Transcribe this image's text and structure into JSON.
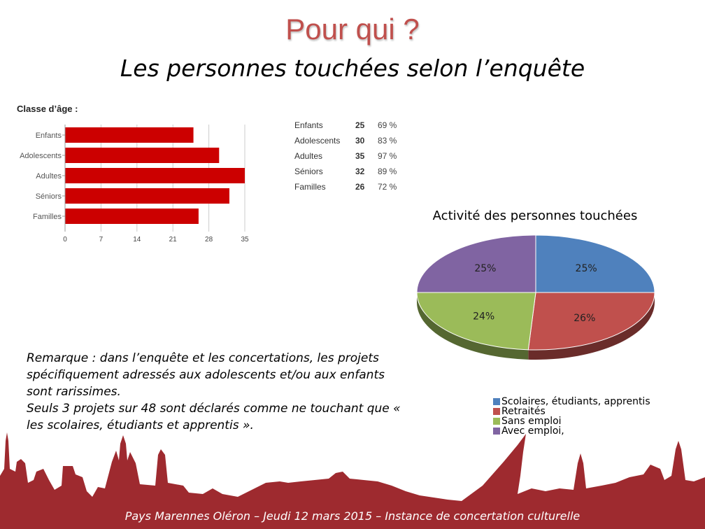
{
  "slide": {
    "title": "Pour qui ?",
    "subtitle": "Les personnes touchées selon l’enquête",
    "remark_line1": "Remarque : dans l’enquête et les concertations, les projets spécifiquement adressés aux adolescents et/ou aux enfants sont rarissimes.",
    "remark_line2": "Seuls 3 projets sur 48 sont déclarés comme ne touchant que « les scolaires, étudiants et apprentis ».",
    "footer": "Pays Marennes Oléron – Jeudi 12 mars 2015 – Instance de concertation culturelle"
  },
  "colors": {
    "title": "#c0504d",
    "bar": "#cc0000",
    "footer_band": "#9e2a2f"
  },
  "chart_data": [
    {
      "type": "bar",
      "orientation": "horizontal",
      "title": "Classe d’âge :",
      "categories": [
        "Enfants",
        "Adolescents",
        "Adultes",
        "Séniors",
        "Familles"
      ],
      "values": [
        25,
        30,
        35,
        32,
        26
      ],
      "percentages": [
        "69 %",
        "83 %",
        "97 %",
        "89 %",
        "72 %"
      ],
      "xticks": [
        0,
        7,
        14,
        21,
        28,
        35
      ],
      "xlim": [
        0,
        35
      ],
      "grid": true
    },
    {
      "type": "pie",
      "title": "Activité des personnes touchées",
      "categories": [
        "Scolaires, étudiants, apprentis",
        "Retraités",
        "Sans emploi",
        "Avec emploi,"
      ],
      "values": [
        25,
        26,
        24,
        25
      ],
      "labels": [
        "25%",
        "26%",
        "24%",
        "25%"
      ],
      "colors": [
        "#4f81bd",
        "#c0504d",
        "#9bbb59",
        "#8064a2"
      ],
      "legend": "bottom"
    }
  ]
}
